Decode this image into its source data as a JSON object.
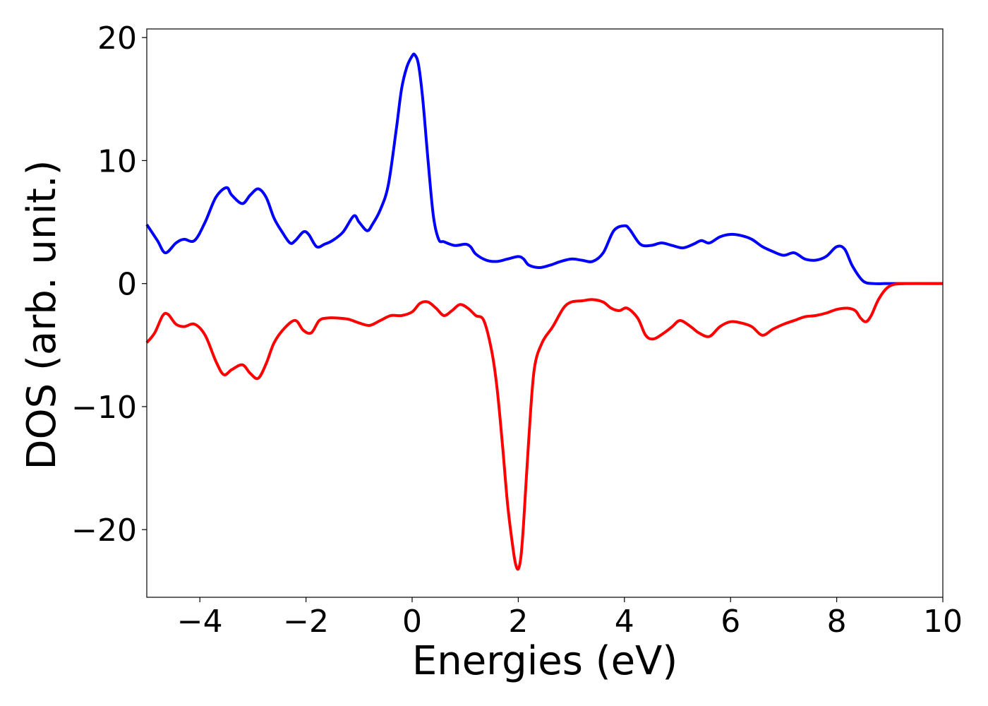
{
  "chart_data": {
    "type": "line",
    "title": "",
    "xlabel": "Energies (eV)",
    "ylabel": "DOS (arb. unit.)",
    "xlim": [
      -5,
      10
    ],
    "ylim": [
      -25.5,
      20.7
    ],
    "xticks": [
      -4,
      -2,
      0,
      2,
      4,
      6,
      8,
      10
    ],
    "xtick_labels": [
      "−4",
      "−2",
      "0",
      "2",
      "4",
      "6",
      "8",
      "10"
    ],
    "yticks": [
      20,
      10,
      0,
      -10,
      -20
    ],
    "ytick_labels": [
      "20",
      "10",
      "0",
      "−10",
      "−20"
    ],
    "grid": false,
    "legend": "none",
    "series": [
      {
        "color": "#0000ff",
        "x": [
          -5.0,
          -4.8,
          -4.65,
          -4.45,
          -4.3,
          -4.1,
          -3.9,
          -3.7,
          -3.5,
          -3.4,
          -3.2,
          -3.05,
          -2.9,
          -2.75,
          -2.6,
          -2.45,
          -2.3,
          -2.2,
          -2.05,
          -1.95,
          -1.8,
          -1.65,
          -1.5,
          -1.3,
          -1.1,
          -1.0,
          -0.85,
          -0.75,
          -0.6,
          -0.45,
          -0.3,
          -0.2,
          -0.1,
          0.0,
          0.05,
          0.12,
          0.2,
          0.3,
          0.4,
          0.5,
          0.6,
          0.8,
          1.0,
          1.1,
          1.2,
          1.4,
          1.6,
          1.8,
          2.0,
          2.1,
          2.2,
          2.4,
          2.6,
          2.8,
          3.0,
          3.2,
          3.4,
          3.6,
          3.8,
          4.0,
          4.1,
          4.3,
          4.5,
          4.7,
          4.9,
          5.1,
          5.3,
          5.45,
          5.6,
          5.8,
          6.0,
          6.2,
          6.4,
          6.6,
          6.8,
          7.0,
          7.2,
          7.4,
          7.6,
          7.8,
          8.0,
          8.15,
          8.3,
          8.5,
          8.7,
          8.9,
          9.2,
          9.6,
          10.0
        ],
        "values": [
          4.8,
          3.5,
          2.5,
          3.3,
          3.6,
          3.5,
          5.0,
          7.0,
          7.8,
          7.2,
          6.5,
          7.2,
          7.7,
          7.0,
          5.3,
          4.2,
          3.3,
          3.5,
          4.2,
          4.0,
          3.0,
          3.2,
          3.5,
          4.2,
          5.5,
          5.0,
          4.3,
          4.8,
          6.0,
          8.0,
          12.5,
          15.8,
          17.6,
          18.5,
          18.6,
          17.8,
          15.0,
          10.0,
          5.5,
          3.6,
          3.4,
          3.1,
          3.2,
          3.0,
          2.4,
          1.9,
          1.8,
          2.0,
          2.2,
          2.0,
          1.5,
          1.3,
          1.5,
          1.8,
          2.0,
          1.9,
          1.8,
          2.5,
          4.3,
          4.7,
          4.4,
          3.2,
          3.1,
          3.3,
          3.1,
          2.9,
          3.2,
          3.5,
          3.3,
          3.8,
          4.0,
          3.9,
          3.6,
          3.0,
          2.6,
          2.3,
          2.5,
          2.0,
          1.9,
          2.2,
          3.0,
          2.8,
          1.4,
          0.2,
          0.0,
          0.0,
          0.0,
          0.0,
          0.0
        ]
      },
      {
        "color": "#ff0000",
        "x": [
          -5.0,
          -4.85,
          -4.7,
          -4.6,
          -4.45,
          -4.3,
          -4.1,
          -3.9,
          -3.7,
          -3.55,
          -3.4,
          -3.2,
          -3.05,
          -2.9,
          -2.75,
          -2.6,
          -2.4,
          -2.2,
          -2.05,
          -1.9,
          -1.75,
          -1.6,
          -1.4,
          -1.2,
          -1.0,
          -0.8,
          -0.6,
          -0.4,
          -0.2,
          0.0,
          0.15,
          0.3,
          0.45,
          0.6,
          0.75,
          0.9,
          1.05,
          1.2,
          1.35,
          1.5,
          1.6,
          1.7,
          1.8,
          1.9,
          1.95,
          2.0,
          2.05,
          2.1,
          2.2,
          2.3,
          2.45,
          2.65,
          2.85,
          3.0,
          3.2,
          3.4,
          3.6,
          3.75,
          3.9,
          4.05,
          4.25,
          4.4,
          4.55,
          4.75,
          4.9,
          5.05,
          5.25,
          5.4,
          5.6,
          5.8,
          6.0,
          6.2,
          6.4,
          6.6,
          6.8,
          7.0,
          7.2,
          7.4,
          7.6,
          7.8,
          8.0,
          8.2,
          8.35,
          8.45,
          8.55,
          8.65,
          8.8,
          9.0,
          9.3,
          10.0
        ],
        "values": [
          -4.8,
          -4.0,
          -2.6,
          -2.5,
          -3.3,
          -3.5,
          -3.3,
          -4.2,
          -6.3,
          -7.4,
          -7.0,
          -6.6,
          -7.3,
          -7.7,
          -6.5,
          -4.8,
          -3.6,
          -3.0,
          -3.8,
          -4.0,
          -3.0,
          -2.8,
          -2.8,
          -2.9,
          -3.2,
          -3.4,
          -3.0,
          -2.6,
          -2.6,
          -2.3,
          -1.6,
          -1.5,
          -2.0,
          -2.6,
          -2.2,
          -1.7,
          -2.0,
          -2.6,
          -3.0,
          -5.5,
          -8.5,
          -13.0,
          -18.0,
          -21.5,
          -22.8,
          -23.2,
          -22.2,
          -19.5,
          -12.5,
          -7.0,
          -4.8,
          -3.5,
          -2.0,
          -1.5,
          -1.4,
          -1.3,
          -1.5,
          -2.0,
          -2.2,
          -2.0,
          -2.8,
          -4.2,
          -4.5,
          -4.0,
          -3.5,
          -3.0,
          -3.5,
          -4.0,
          -4.3,
          -3.5,
          -3.1,
          -3.2,
          -3.5,
          -4.2,
          -3.7,
          -3.3,
          -3.0,
          -2.7,
          -2.6,
          -2.4,
          -2.1,
          -2.0,
          -2.2,
          -2.8,
          -3.1,
          -2.6,
          -1.2,
          -0.2,
          0.0,
          0.0
        ]
      }
    ]
  }
}
